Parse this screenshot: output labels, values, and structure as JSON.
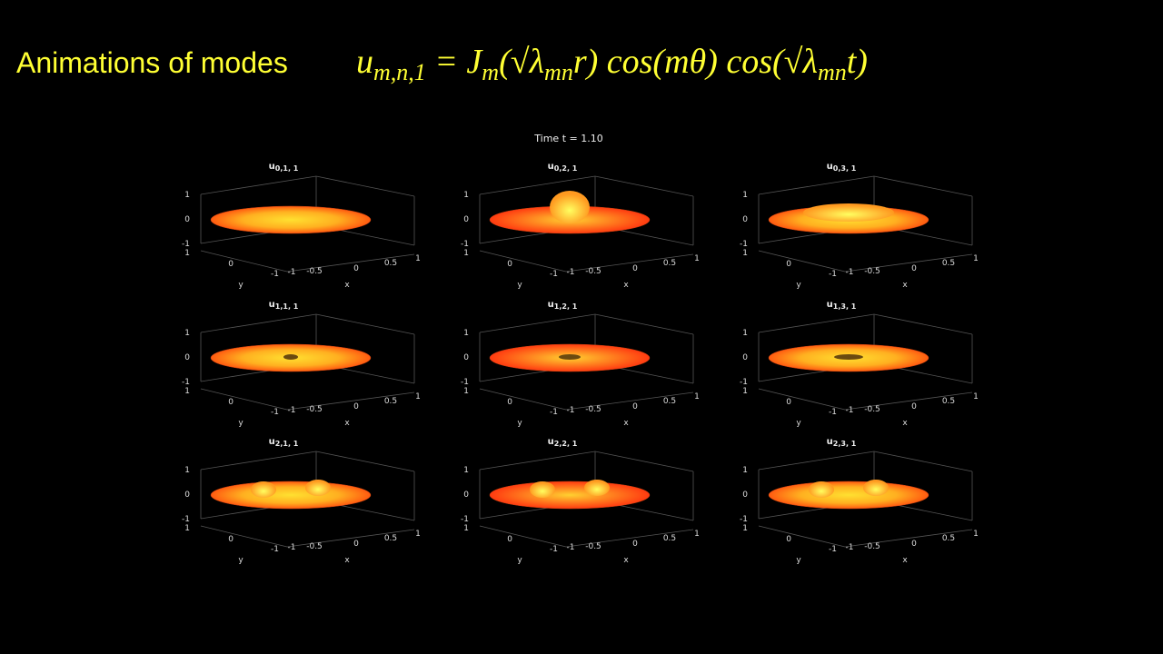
{
  "header": {
    "title": "Animations of modes",
    "formula": [
      {
        "text": "u",
        "sub": "m,n,1"
      },
      {
        "text": " = J",
        "sub": "m"
      },
      {
        "text": "(√λ",
        "sub": "mn"
      },
      {
        "text": "r) cos(mθ) cos(√λ",
        "sub": "mn"
      },
      {
        "text": "t)"
      }
    ]
  },
  "figure": {
    "title": "Time t = 1.10",
    "axes": {
      "zticks": [
        1,
        0,
        -1
      ],
      "yticks": [
        1,
        0,
        -1
      ],
      "xticks": [
        -1,
        -0.5,
        0,
        0.5,
        1
      ],
      "xlabel": "x",
      "ylabel": "y"
    },
    "panels": [
      {
        "symbol": "u",
        "subscript": "0,1, 1"
      },
      {
        "symbol": "u",
        "subscript": "0,2, 1"
      },
      {
        "symbol": "u",
        "subscript": "0,3, 1"
      },
      {
        "symbol": "u",
        "subscript": "1,1, 1"
      },
      {
        "symbol": "u",
        "subscript": "1,2, 1"
      },
      {
        "symbol": "u",
        "subscript": "1,3, 1"
      },
      {
        "symbol": "u",
        "subscript": "2,1, 1"
      },
      {
        "symbol": "u",
        "subscript": "2,2, 1"
      },
      {
        "symbol": "u",
        "subscript": "2,3, 1"
      }
    ]
  }
}
